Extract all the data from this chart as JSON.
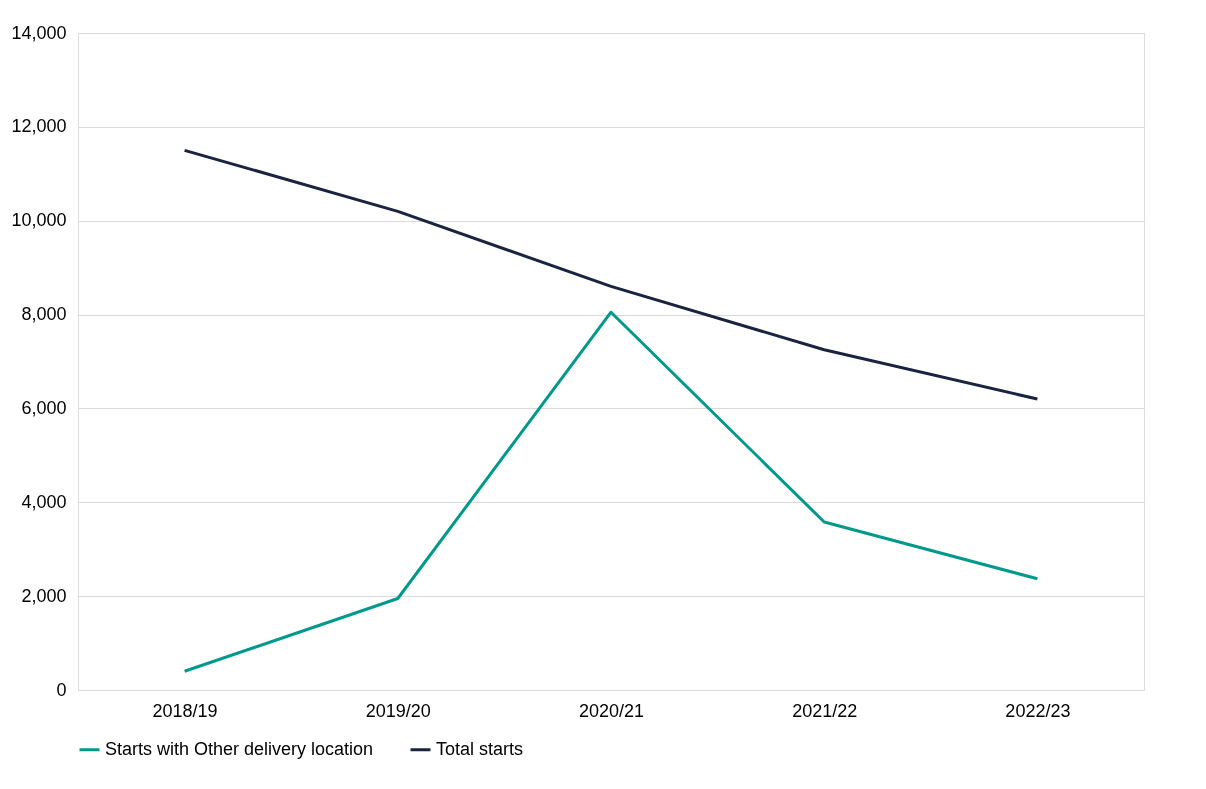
{
  "chart_data": {
    "type": "line",
    "categories": [
      "2018/19",
      "2019/20",
      "2020/21",
      "2021/22",
      "2022/23"
    ],
    "series": [
      {
        "name": "Starts with Other delivery location",
        "color": "#00998c",
        "values": [
          400,
          1950,
          8050,
          3580,
          2370
        ]
      },
      {
        "name": "Total starts",
        "color": "#1a2340",
        "values": [
          11500,
          10200,
          8600,
          7250,
          6200
        ]
      }
    ],
    "ylim": [
      0,
      14000
    ],
    "yticks": [
      {
        "value": 0,
        "label": "0"
      },
      {
        "value": 2000,
        "label": "2,000"
      },
      {
        "value": 4000,
        "label": "4,000"
      },
      {
        "value": 6000,
        "label": "6,000"
      },
      {
        "value": 8000,
        "label": "8,000"
      },
      {
        "value": 10000,
        "label": "10,000"
      },
      {
        "value": 12000,
        "label": "12,000"
      },
      {
        "value": 14000,
        "label": "14,000"
      }
    ],
    "grid": "y",
    "legend": "bottom",
    "marker": "none",
    "line_style": "solid"
  }
}
